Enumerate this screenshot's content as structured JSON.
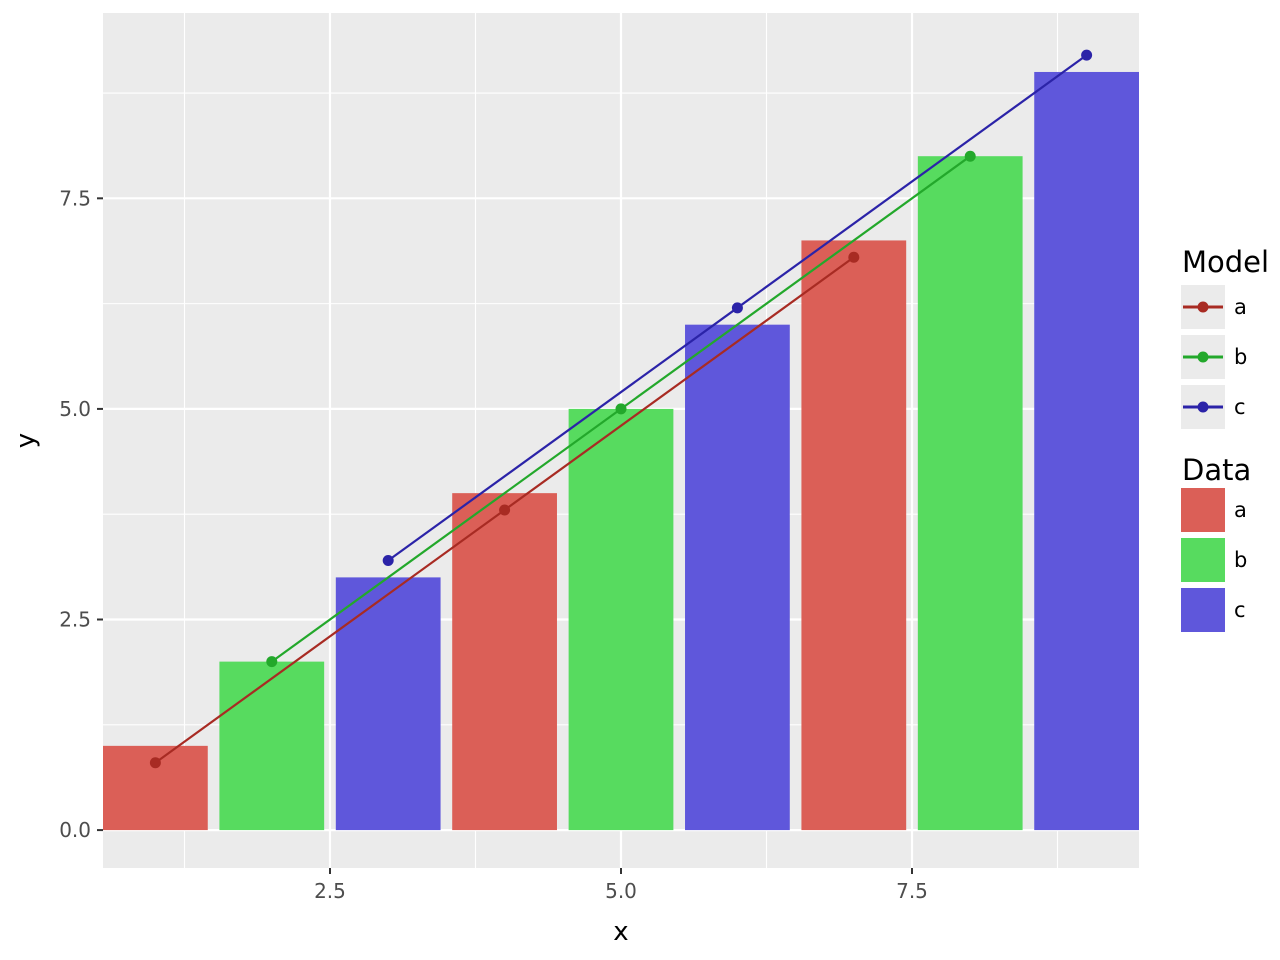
{
  "chart_data": {
    "type": "bar",
    "xlabel": "x",
    "ylabel": "y",
    "xlim": [
      0.55,
      9.45
    ],
    "ylim": [
      -0.45,
      9.7
    ],
    "x_ticks": [
      2.5,
      5.0,
      7.5
    ],
    "x_tick_labels": [
      "2.5",
      "5.0",
      "7.5"
    ],
    "y_ticks": [
      0.0,
      2.5,
      5.0,
      7.5
    ],
    "y_tick_labels": [
      "0.0",
      "2.5",
      "5.0",
      "7.5"
    ],
    "grid": true,
    "panel_background": "#ebebeb",
    "bar_width": 0.9,
    "bars": {
      "x": [
        1,
        2,
        3,
        4,
        5,
        6,
        7,
        8,
        9
      ],
      "values": [
        1,
        2,
        3,
        4,
        5,
        6,
        7,
        8,
        9
      ],
      "groups": [
        "a",
        "b",
        "c",
        "a",
        "b",
        "c",
        "a",
        "b",
        "c"
      ]
    },
    "lines": [
      {
        "name": "a",
        "x": [
          1,
          4,
          7
        ],
        "y": [
          0.8,
          3.8,
          6.8
        ]
      },
      {
        "name": "b",
        "x": [
          2,
          5,
          8
        ],
        "y": [
          2.0,
          5.0,
          8.0
        ]
      },
      {
        "name": "c",
        "x": [
          3,
          6,
          9
        ],
        "y": [
          3.2,
          6.2,
          9.2
        ]
      }
    ],
    "legends": [
      {
        "title": "Model",
        "kind": "line-point",
        "entries": [
          "a",
          "b",
          "c"
        ]
      },
      {
        "title": "Data",
        "kind": "fill",
        "entries": [
          "a",
          "b",
          "c"
        ]
      }
    ],
    "legend_position": "right",
    "colors": {
      "bar_fill": {
        "a": "#db5f57",
        "b": "#57db5f",
        "c": "#5f57db"
      },
      "line": {
        "a": "#a82b23",
        "b": "#23a82b",
        "c": "#2b23a8"
      }
    }
  }
}
